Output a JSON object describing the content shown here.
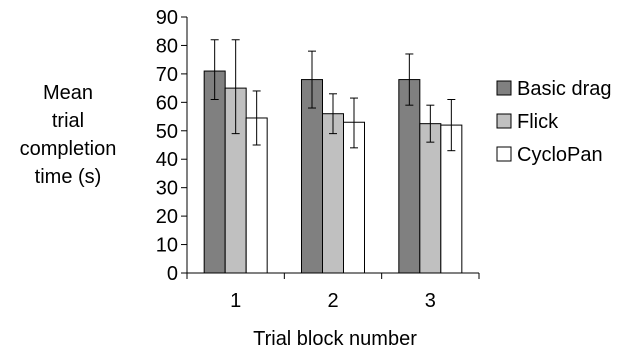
{
  "chart_data": {
    "type": "bar",
    "title": "",
    "xlabel": "Trial block number",
    "ylabel_lines": [
      "Mean",
      "trial",
      "completion",
      "time (s)"
    ],
    "categories": [
      "1",
      "2",
      "3"
    ],
    "ylim": [
      0,
      90
    ],
    "yticks": [
      0,
      10,
      20,
      30,
      40,
      50,
      60,
      70,
      80,
      90
    ],
    "grid": false,
    "legend_position": "right",
    "series": [
      {
        "name": "Basic drag",
        "color": "#808080",
        "values": [
          71,
          68,
          68
        ],
        "err_low": [
          61,
          58,
          59
        ],
        "err_high": [
          82,
          78,
          77
        ]
      },
      {
        "name": "Flick",
        "color": "#c0c0c0",
        "values": [
          65,
          56,
          52.5
        ],
        "err_low": [
          49,
          49,
          46
        ],
        "err_high": [
          82,
          63,
          59
        ]
      },
      {
        "name": "CycloPan",
        "color": "#ffffff",
        "values": [
          54.5,
          53,
          52
        ],
        "err_low": [
          45,
          44,
          43
        ],
        "err_high": [
          64,
          61.5,
          61
        ]
      }
    ]
  }
}
